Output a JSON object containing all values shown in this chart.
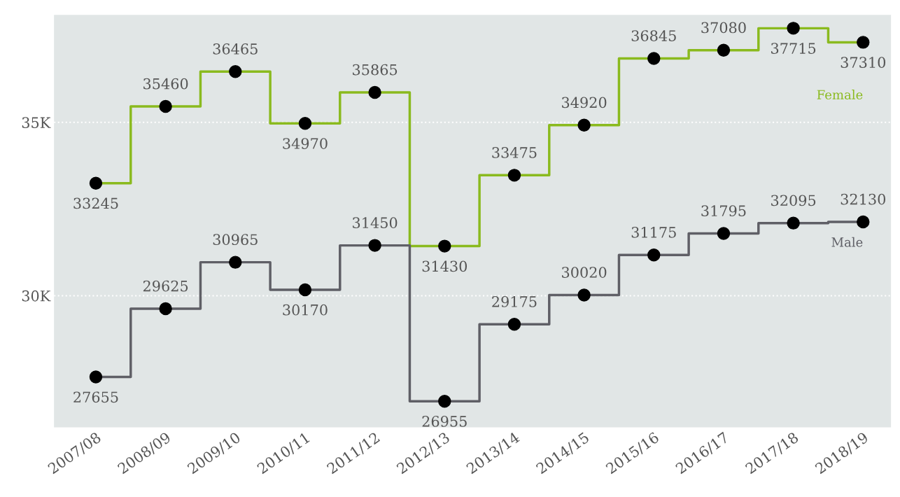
{
  "chart_data": {
    "type": "step",
    "categories": [
      "2007/08",
      "2008/09",
      "2009/10",
      "2010/11",
      "2011/12",
      "2012/13",
      "2013/14",
      "2014/15",
      "2015/16",
      "2016/17",
      "2017/18",
      "2018/19"
    ],
    "series": [
      {
        "name": "Female",
        "color": "#8aba1e",
        "values": [
          33245,
          35460,
          36465,
          34970,
          35865,
          31430,
          33475,
          34920,
          36845,
          37080,
          37715,
          37310
        ]
      },
      {
        "name": "Male",
        "color": "#5f5f66",
        "values": [
          27655,
          29625,
          30965,
          30170,
          31450,
          26955,
          29175,
          30020,
          31175,
          31795,
          32095,
          32130
        ]
      }
    ],
    "ylim": [
      26200,
      38100
    ],
    "yticks": [
      {
        "value": 30000,
        "label": "30K"
      },
      {
        "value": 35000,
        "label": "35K"
      }
    ],
    "grid": "y",
    "marker": "circle",
    "line_style": "solid",
    "data_labels": true
  }
}
